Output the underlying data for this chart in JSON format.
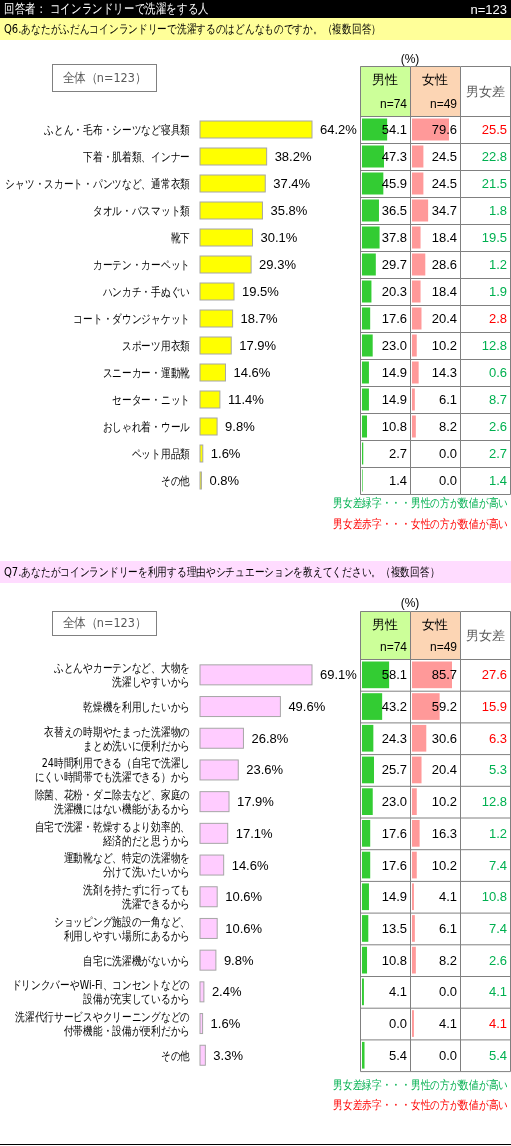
{
  "chart_data": [
    {
      "type": "bar",
      "orientation": "horizontal",
      "title": "回答者： コインランドリーで洗濯をする人",
      "subtitle": "Q6.あなたがふだんコインランドリーで洗濯するのはどんなものですか。（複数回答）",
      "annotations": [
        "全体（n=123）",
        "n=123"
      ],
      "tick_labels": "y",
      "color": "#ffff00",
      "categories": [
        "ふとん・毛布・シーツなど寝具類",
        "下着・肌着類、インナー",
        "シャツ・スカート・パンツなど、通常衣類",
        "タオル・バスマット類",
        "靴下",
        "カーテン・カーペット",
        "ハンカチ・手ぬぐい",
        "コート・ダウンジャケット",
        "スポーツ用衣類",
        "スニーカー・運動靴",
        "セーター・ニット",
        "おしゃれ着・ウール",
        "ペット用品類",
        "その他"
      ],
      "values": [
        64.2,
        38.2,
        37.4,
        35.8,
        30.1,
        29.3,
        19.5,
        18.7,
        17.9,
        14.6,
        11.4,
        9.8,
        1.6,
        0.8
      ],
      "value_labels": [
        "64.2%",
        "38.2%",
        "37.4%",
        "35.8%",
        "30.1%",
        "29.3%",
        "19.5%",
        "18.7%",
        "17.9%",
        "14.6%",
        "11.4%",
        "9.8%",
        "1.6%",
        "0.8%"
      ]
    },
    {
      "type": "bar",
      "orientation": "horizontal",
      "title": "男性",
      "xlabel": "(%)",
      "annotations": [
        "n=74"
      ],
      "color": "#33cc33",
      "categories": [
        null,
        null,
        null,
        null,
        null,
        null,
        null,
        null,
        null,
        null,
        null,
        null,
        null,
        null
      ],
      "values": [
        54.1,
        47.3,
        45.9,
        36.5,
        37.8,
        29.7,
        20.3,
        17.6,
        23.0,
        14.9,
        14.9,
        10.8,
        2.7,
        1.4
      ],
      "value_labels": [
        "54.1",
        "47.3",
        "45.9",
        "36.5",
        "37.8",
        "29.7",
        "20.3",
        "17.6",
        "23.0",
        "14.9",
        "14.9",
        "10.8",
        "2.7",
        "1.4"
      ]
    },
    {
      "type": "bar",
      "orientation": "horizontal",
      "title": "女性",
      "annotations": [
        "n=49"
      ],
      "color": "#ff9999",
      "categories": [
        null,
        null,
        null,
        null,
        null,
        null,
        null,
        null,
        null,
        null,
        null,
        null,
        null,
        null
      ],
      "values": [
        79.6,
        24.5,
        24.5,
        34.7,
        18.4,
        28.6,
        18.4,
        20.4,
        10.2,
        14.3,
        6.1,
        8.2,
        0.0,
        0.0
      ],
      "value_labels": [
        "79.6",
        "24.5",
        "24.5",
        "34.7",
        "18.4",
        "28.6",
        "18.4",
        "20.4",
        "10.2",
        "14.3",
        "6.1",
        "8.2",
        "0.0",
        "0.0"
      ]
    },
    {
      "type": "other",
      "title": "男女差",
      "annotations": [
        "25.5",
        "22.8",
        "21.5",
        "1.8",
        "19.5",
        "1.2",
        "1.9",
        "2.8",
        "12.8",
        "0.6",
        "8.7",
        "2.6",
        "2.7",
        "1.4"
      ],
      "colors": [
        "#ff0000",
        "#00b050",
        "#00b050",
        "#00b050",
        "#00b050",
        "#00b050",
        "#00b050",
        "#ff0000",
        "#00b050",
        "#00b050",
        "#00b050",
        "#00b050",
        "#00b050",
        "#00b050"
      ],
      "series": [
        {
          "name": "男女差緑字・・・男性の方が数値が高い",
          "color": "#00b050"
        },
        {
          "name": "男女差赤字・・・女性の方が数値が高い",
          "color": "#ff0000"
        }
      ]
    },
    {
      "type": "bar",
      "orientation": "horizontal",
      "subtitle": "Q7.あなたがコインランドリーを利用する理由やシチュエーションを教えてください。（複数回答）",
      "annotations": [
        "全体（n=123）"
      ],
      "tick_labels": "y",
      "color": "#ffccff",
      "categories": [
        "ふとんやカーテンなど、大物を洗濯しやすいから",
        "乾燥機を利用したいから",
        "衣替えの時期やたまった洗濯物のまとめ洗いに便利だから",
        "24時間利用できる（自宅で洗濯しにくい時間帯でも洗濯できる）から",
        "除菌、花粉・ダニ除去など、家庭の洗濯機にはない機能があるから",
        "自宅で洗濯・乾燥するより効率的、経済的だと思うから",
        "運動靴など、特定の洗濯物を分けて洗いたいから",
        "洗剤を持たずに行っても洗濯できるから",
        "ショッピング施設の一角など、利用しやすい場所にあるから",
        "自宅に洗濯機がないから",
        "ドリンクバーやWi-Fi、コンセントなどの設備が充実しているから",
        "洗濯代行サービスやクリーニングなどの付帯機能・設備が便利だから",
        "その他"
      ],
      "values": [
        69.1,
        49.6,
        26.8,
        23.6,
        17.9,
        17.1,
        14.6,
        10.6,
        10.6,
        9.8,
        2.4,
        1.6,
        3.3
      ],
      "value_labels": [
        "69.1%",
        "49.6%",
        "26.8%",
        "23.6%",
        "17.9%",
        "17.1%",
        "14.6%",
        "10.6%",
        "10.6%",
        "9.8%",
        "2.4%",
        "1.6%",
        "3.3%"
      ]
    },
    {
      "type": "bar",
      "orientation": "horizontal",
      "title": "男性",
      "xlabel": "(%)",
      "annotations": [
        "n=74"
      ],
      "color": "#33cc33",
      "categories": [
        null,
        null,
        null,
        null,
        null,
        null,
        null,
        null,
        null,
        null,
        null,
        null,
        null
      ],
      "values": [
        58.1,
        43.2,
        24.3,
        25.7,
        23.0,
        17.6,
        17.6,
        14.9,
        13.5,
        10.8,
        4.1,
        0.0,
        5.4
      ],
      "value_labels": [
        "58.1",
        "43.2",
        "24.3",
        "25.7",
        "23.0",
        "17.6",
        "17.6",
        "14.9",
        "13.5",
        "10.8",
        "4.1",
        "0.0",
        "5.4"
      ]
    },
    {
      "type": "bar",
      "orientation": "horizontal",
      "title": "女性",
      "annotations": [
        "n=49"
      ],
      "color": "#ff9999",
      "categories": [
        null,
        null,
        null,
        null,
        null,
        null,
        null,
        null,
        null,
        null,
        null,
        null,
        null
      ],
      "values": [
        85.7,
        59.2,
        30.6,
        20.4,
        10.2,
        16.3,
        10.2,
        4.1,
        6.1,
        8.2,
        0.0,
        4.1,
        0.0
      ],
      "value_labels": [
        "85.7",
        "59.2",
        "30.6",
        "20.4",
        "10.2",
        "16.3",
        "10.2",
        "4.1",
        "6.1",
        "8.2",
        "0.0",
        "4.1",
        "0.0"
      ]
    },
    {
      "type": "other",
      "title": "男女差",
      "annotations": [
        "27.6",
        "15.9",
        "6.3",
        "5.3",
        "12.8",
        "1.2",
        "7.4",
        "10.8",
        "7.4",
        "2.6",
        "4.1",
        "4.1",
        "5.4"
      ],
      "colors": [
        "#ff0000",
        "#ff0000",
        "#ff0000",
        "#00b050",
        "#00b050",
        "#00b050",
        "#00b050",
        "#00b050",
        "#00b050",
        "#00b050",
        "#00b050",
        "#ff0000",
        "#00b050"
      ],
      "series": [
        {
          "name": "男女差緑字・・・男性の方が数値が高い",
          "color": "#00b050"
        },
        {
          "name": "男女差赤字・・・女性の方が数値が高い",
          "color": "#ff0000"
        }
      ]
    }
  ]
}
